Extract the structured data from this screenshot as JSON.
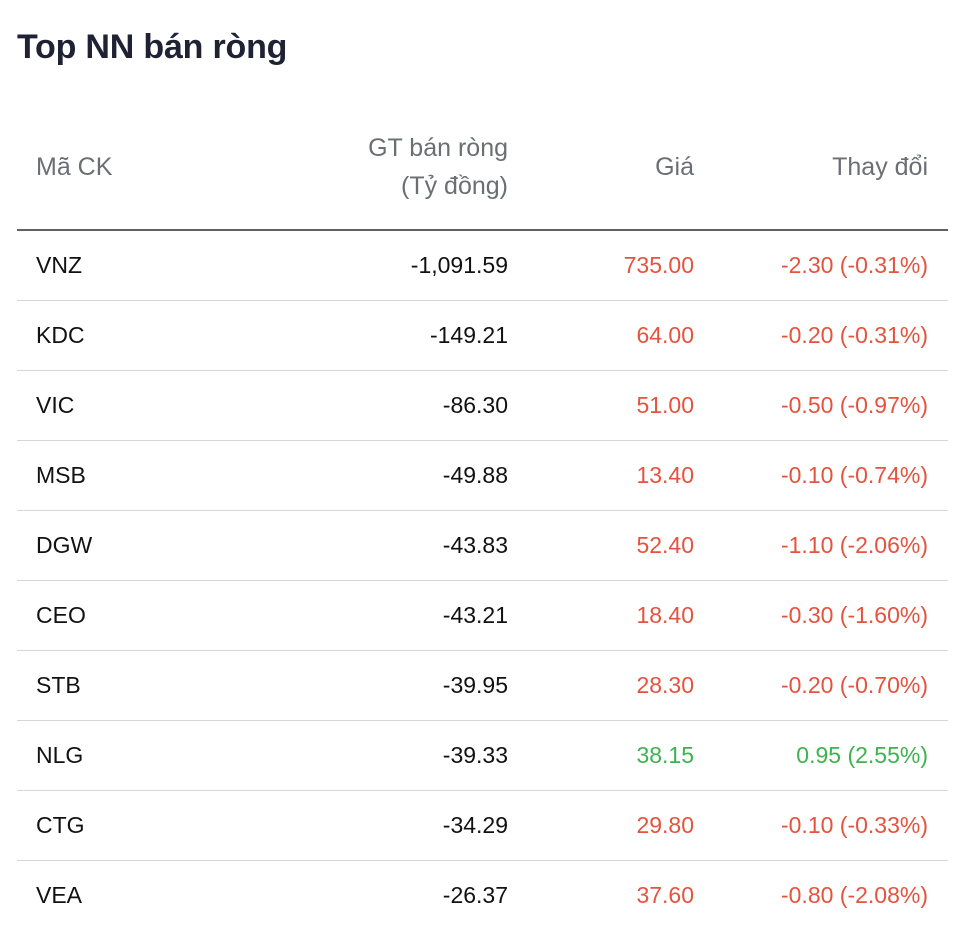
{
  "title": "Top NN bán ròng",
  "table": {
    "headers": {
      "code": "Mã CK",
      "value_line1": "GT bán ròng",
      "value_line2": "(Tỷ đồng)",
      "price": "Giá",
      "change": "Thay đổi"
    },
    "rows": [
      {
        "code": "VNZ",
        "value": "-1,091.59",
        "price": "735.00",
        "change": "-2.30 (-0.31%)",
        "direction": "down"
      },
      {
        "code": "KDC",
        "value": "-149.21",
        "price": "64.00",
        "change": "-0.20 (-0.31%)",
        "direction": "down"
      },
      {
        "code": "VIC",
        "value": "-86.30",
        "price": "51.00",
        "change": "-0.50 (-0.97%)",
        "direction": "down"
      },
      {
        "code": "MSB",
        "value": "-49.88",
        "price": "13.40",
        "change": "-0.10 (-0.74%)",
        "direction": "down"
      },
      {
        "code": "DGW",
        "value": "-43.83",
        "price": "52.40",
        "change": "-1.10 (-2.06%)",
        "direction": "down"
      },
      {
        "code": "CEO",
        "value": "-43.21",
        "price": "18.40",
        "change": "-0.30 (-1.60%)",
        "direction": "down"
      },
      {
        "code": "STB",
        "value": "-39.95",
        "price": "28.30",
        "change": "-0.20 (-0.70%)",
        "direction": "down"
      },
      {
        "code": "NLG",
        "value": "-39.33",
        "price": "38.15",
        "change": "0.95 (2.55%)",
        "direction": "up"
      },
      {
        "code": "CTG",
        "value": "-34.29",
        "price": "29.80",
        "change": "-0.10 (-0.33%)",
        "direction": "down"
      },
      {
        "code": "VEA",
        "value": "-26.37",
        "price": "37.60",
        "change": "-0.80 (-2.08%)",
        "direction": "down"
      }
    ]
  },
  "colors": {
    "down": "#e5533f",
    "up": "#3db34f",
    "title": "#1f2233",
    "header_text": "#6b6e73"
  }
}
